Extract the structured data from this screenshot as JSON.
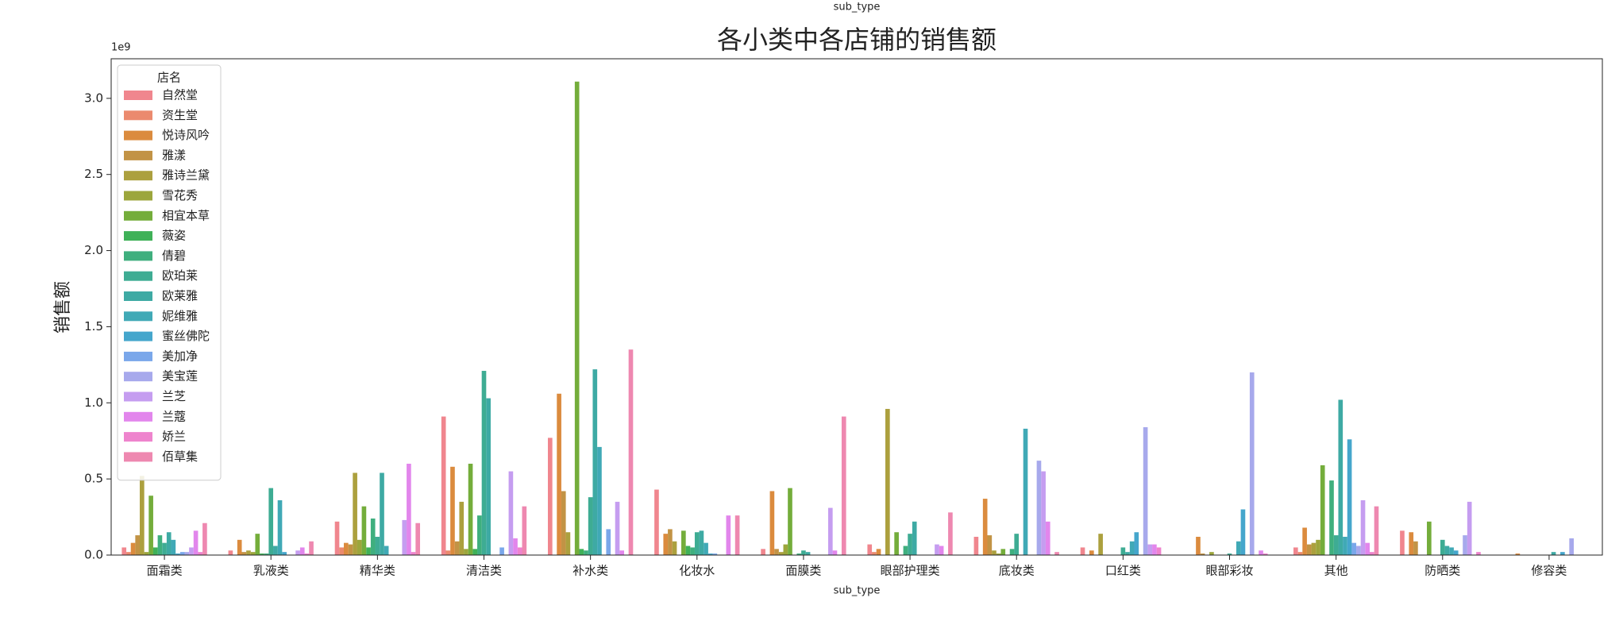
{
  "chart_data": {
    "type": "bar",
    "top_label": "sub_type",
    "title": "各小类中各店铺的销售额",
    "xlabel": "sub_type",
    "ylabel": "销售额",
    "y_offset_label": "1e9",
    "legend_title": "店名",
    "legend_position": "upper left",
    "categories": [
      "面霜类",
      "乳液类",
      "精华类",
      "清洁类",
      "补水类",
      "化妆水",
      "面膜类",
      "眼部护理类",
      "底妆类",
      "口红类",
      "眼部彩妆",
      "其他",
      "防晒类",
      "修容类"
    ],
    "ylim": [
      0,
      3.26
    ],
    "yticks": [
      {
        "value": 0,
        "label": "0.0"
      },
      {
        "value": 0.5,
        "label": "0.5"
      },
      {
        "value": 1,
        "label": "1.0"
      },
      {
        "value": 1.5,
        "label": "1.5"
      },
      {
        "value": 2,
        "label": "2.0"
      },
      {
        "value": 2.5,
        "label": "2.5"
      },
      {
        "value": 3,
        "label": "3.0"
      }
    ],
    "series": [
      {
        "name": "自然堂",
        "color": "#f0868e",
        "values": [
          0.05,
          0.03,
          0.22,
          0.91,
          0.77,
          0.43,
          0.04,
          0.07,
          0.12,
          0.05,
          0.0,
          0.05,
          0.16,
          0.0
        ]
      },
      {
        "name": "资生堂",
        "color": "#eb8a6e",
        "values": [
          0.02,
          0.0,
          0.05,
          0.03,
          0.0,
          0.0,
          0.0,
          0.02,
          0.0,
          0.0,
          0.0,
          0.02,
          0.0,
          0.0
        ]
      },
      {
        "name": "悦诗风吟",
        "color": "#db8b3e",
        "values": [
          0.08,
          0.1,
          0.08,
          0.58,
          1.06,
          0.14,
          0.42,
          0.04,
          0.37,
          0.03,
          0.12,
          0.18,
          0.15,
          0.01
        ]
      },
      {
        "name": "雅漾",
        "color": "#c29345",
        "values": [
          0.13,
          0.02,
          0.07,
          0.09,
          0.42,
          0.17,
          0.04,
          0.0,
          0.13,
          0.0,
          0.01,
          0.07,
          0.09,
          0.0
        ]
      },
      {
        "name": "雅诗兰黛",
        "color": "#aca03e",
        "values": [
          0.52,
          0.03,
          0.54,
          0.35,
          0.15,
          0.09,
          0.02,
          0.96,
          0.03,
          0.14,
          0.0,
          0.08,
          0.0,
          0.0
        ]
      },
      {
        "name": "雪花秀",
        "color": "#9ca63c",
        "values": [
          0.02,
          0.02,
          0.1,
          0.04,
          0.0,
          0.0,
          0.07,
          0.0,
          0.01,
          0.0,
          0.02,
          0.1,
          0.0,
          0.0
        ]
      },
      {
        "name": "相宜本草",
        "color": "#74ad3b",
        "values": [
          0.39,
          0.14,
          0.32,
          0.6,
          3.11,
          0.16,
          0.44,
          0.15,
          0.04,
          0.0,
          0.0,
          0.59,
          0.22,
          0.0
        ]
      },
      {
        "name": "薇姿",
        "color": "#3fb158",
        "values": [
          0.05,
          0.01,
          0.05,
          0.04,
          0.04,
          0.06,
          0.0,
          0.0,
          0.0,
          0.0,
          0.0,
          0.0,
          0.0,
          0.0
        ]
      },
      {
        "name": "倩碧",
        "color": "#3faf7e",
        "values": [
          0.13,
          0.01,
          0.24,
          0.26,
          0.03,
          0.05,
          0.01,
          0.06,
          0.04,
          0.0,
          0.0,
          0.49,
          0.0,
          0.0
        ]
      },
      {
        "name": "欧珀莱",
        "color": "#3eac93",
        "values": [
          0.08,
          0.44,
          0.12,
          1.21,
          0.38,
          0.15,
          0.03,
          0.14,
          0.14,
          0.05,
          0.01,
          0.13,
          0.1,
          0.0
        ]
      },
      {
        "name": "欧莱雅",
        "color": "#3eaaa4",
        "values": [
          0.15,
          0.06,
          0.54,
          1.03,
          1.22,
          0.16,
          0.02,
          0.22,
          0.0,
          0.02,
          0.0,
          1.02,
          0.06,
          0.02
        ]
      },
      {
        "name": "妮维雅",
        "color": "#40a9b6",
        "values": [
          0.1,
          0.36,
          0.06,
          0.0,
          0.71,
          0.08,
          0.0,
          0.0,
          0.83,
          0.09,
          0.09,
          0.12,
          0.05,
          0.0
        ]
      },
      {
        "name": "蜜丝佛陀",
        "color": "#45a6cc",
        "values": [
          0.01,
          0.02,
          0.0,
          0.0,
          0.0,
          0.01,
          0.0,
          0.0,
          0.0,
          0.15,
          0.3,
          0.76,
          0.03,
          0.02
        ]
      },
      {
        "name": "美加净",
        "color": "#7aa7ea",
        "values": [
          0.02,
          0.0,
          0.0,
          0.05,
          0.17,
          0.01,
          0.0,
          0.0,
          0.0,
          0.0,
          0.0,
          0.08,
          0.0,
          0.0
        ]
      },
      {
        "name": "美宝莲",
        "color": "#a7a9ec",
        "values": [
          0.02,
          0.0,
          0.0,
          0.0,
          0.0,
          0.0,
          0.0,
          0.0,
          0.62,
          0.84,
          1.2,
          0.06,
          0.13,
          0.11
        ]
      },
      {
        "name": "兰芝",
        "color": "#c59df0",
        "values": [
          0.05,
          0.03,
          0.23,
          0.55,
          0.35,
          0.0,
          0.31,
          0.07,
          0.55,
          0.07,
          0.0,
          0.36,
          0.35,
          0.0
        ]
      },
      {
        "name": "兰蔻",
        "color": "#e286ec",
        "values": [
          0.16,
          0.05,
          0.6,
          0.11,
          0.03,
          0.26,
          0.03,
          0.06,
          0.22,
          0.07,
          0.03,
          0.08,
          0.0,
          0.0
        ]
      },
      {
        "name": "娇兰",
        "color": "#ee84cd",
        "values": [
          0.02,
          0.01,
          0.02,
          0.05,
          0.0,
          0.0,
          0.0,
          0.0,
          0.0,
          0.05,
          0.01,
          0.02,
          0.02,
          0.0
        ]
      },
      {
        "name": "佰草集",
        "color": "#ee88b0",
        "values": [
          0.21,
          0.09,
          0.21,
          0.32,
          1.35,
          0.26,
          0.91,
          0.28,
          0.02,
          0.0,
          0.0,
          0.32,
          0.0,
          0.0
        ]
      }
    ]
  }
}
